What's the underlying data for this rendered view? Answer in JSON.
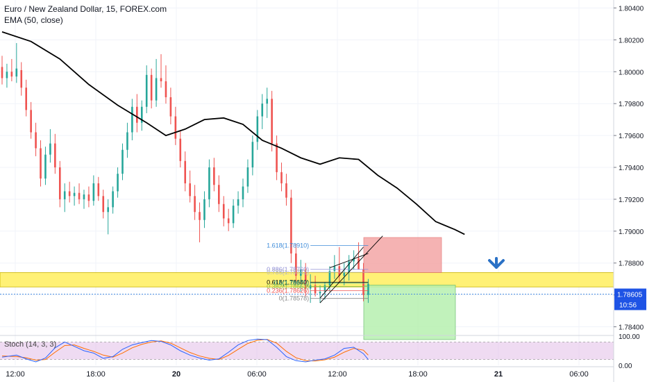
{
  "header": {
    "title": "Euro / New Zealand Dollar, 15, FOREX.com",
    "indicator": "EMA (50, close)"
  },
  "stoch_label": "Stoch (14, 3, 3)",
  "colors": {
    "up": "#26a69a",
    "down": "#ef5350",
    "ema": "#000000",
    "highlight_band": "#fff176",
    "stop_zone": "#f4a6a6",
    "target_zone": "#b7f0b0",
    "arrow": "#2a71c6",
    "current_price_line": "#4a90e2",
    "stoch_bg": "#e1bee7",
    "stoch_k": "#2962ff",
    "stoch_d": "#ff6d00"
  },
  "price_badge": {
    "price": "1.78605",
    "countdown": "10:56",
    "color": "#1e53e5"
  },
  "stoch_ticks": [
    "100.00",
    "0.00"
  ],
  "chart_data": {
    "type": "candlestick",
    "title": "Euro / New Zealand Dollar, 15, FOREX.com",
    "y_axis_ticks": [
      "1.80400",
      "1.80200",
      "1.80000",
      "1.79800",
      "1.79600",
      "1.79400",
      "1.79200",
      "1.79000",
      "1.78800",
      "1.78600",
      "1.78400"
    ],
    "ylim": [
      1.7835,
      1.8045
    ],
    "x_axis_ticks": [
      "12:00",
      "18:00",
      "20",
      "06:00",
      "12:00",
      "18:00",
      "21",
      "06:00"
    ],
    "current_price": 1.78605,
    "highlight_zone": [
      1.7865,
      1.7874
    ],
    "ema": [
      [
        0,
        1.8025
      ],
      [
        12,
        1.8019
      ],
      [
        24,
        1.8008
      ],
      [
        36,
        1.7992
      ],
      [
        48,
        1.7979
      ],
      [
        60,
        1.7968
      ],
      [
        68,
        1.796
      ],
      [
        76,
        1.7964
      ],
      [
        84,
        1.797
      ],
      [
        92,
        1.7971
      ],
      [
        100,
        1.7967
      ],
      [
        108,
        1.7957
      ],
      [
        116,
        1.7952
      ],
      [
        124,
        1.7946
      ],
      [
        132,
        1.7942
      ],
      [
        140,
        1.7946
      ],
      [
        148,
        1.7945
      ],
      [
        156,
        1.7935
      ],
      [
        164,
        1.7927
      ],
      [
        172,
        1.7917
      ],
      [
        180,
        1.7906
      ],
      [
        188,
        1.7901
      ],
      [
        192,
        1.7898
      ]
    ],
    "candles": [
      [
        0,
        1.8003,
        1.801,
        1.7992,
        1.7996
      ],
      [
        2,
        1.7996,
        1.8005,
        1.799,
        1.8
      ],
      [
        4,
        1.8,
        1.8008,
        1.7994,
        1.7997
      ],
      [
        6,
        1.7997,
        1.8018,
        1.7993,
        1.8002
      ],
      [
        8,
        1.8001,
        1.8006,
        1.7985,
        1.799
      ],
      [
        10,
        1.799,
        1.7995,
        1.7972,
        1.7976
      ],
      [
        12,
        1.7976,
        1.7981,
        1.7958,
        1.7962
      ],
      [
        14,
        1.7962,
        1.7968,
        1.7947,
        1.7952
      ],
      [
        16,
        1.7952,
        1.7957,
        1.7928,
        1.7933
      ],
      [
        18,
        1.7933,
        1.7953,
        1.7929,
        1.7948
      ],
      [
        20,
        1.7948,
        1.7964,
        1.7943,
        1.7955
      ],
      [
        22,
        1.7955,
        1.7961,
        1.7936,
        1.794
      ],
      [
        24,
        1.794,
        1.7944,
        1.7915,
        1.792
      ],
      [
        26,
        1.792,
        1.793,
        1.7912,
        1.7925
      ],
      [
        28,
        1.7925,
        1.7931,
        1.7918,
        1.7922
      ],
      [
        30,
        1.7922,
        1.7928,
        1.7916,
        1.7924
      ],
      [
        32,
        1.7924,
        1.793,
        1.7917,
        1.792
      ],
      [
        34,
        1.792,
        1.7926,
        1.7914,
        1.7923
      ],
      [
        36,
        1.7923,
        1.7928,
        1.7915,
        1.7919
      ],
      [
        38,
        1.7919,
        1.7935,
        1.7916,
        1.793
      ],
      [
        40,
        1.793,
        1.7934,
        1.7919,
        1.7922
      ],
      [
        42,
        1.7922,
        1.7926,
        1.7908,
        1.7912
      ],
      [
        44,
        1.7912,
        1.792,
        1.7898,
        1.7915
      ],
      [
        46,
        1.7915,
        1.7928,
        1.7911,
        1.7925
      ],
      [
        48,
        1.7925,
        1.794,
        1.7921,
        1.7936
      ],
      [
        50,
        1.7936,
        1.7955,
        1.7932,
        1.7951
      ],
      [
        52,
        1.7951,
        1.7968,
        1.7946,
        1.7962
      ],
      [
        54,
        1.7962,
        1.7983,
        1.7957,
        1.7978
      ],
      [
        56,
        1.7978,
        1.7986,
        1.7962,
        1.7968
      ],
      [
        58,
        1.7968,
        1.7982,
        1.7963,
        1.7978
      ],
      [
        60,
        1.7978,
        1.8004,
        1.7974,
        1.7998
      ],
      [
        62,
        1.7998,
        1.8002,
        1.7977,
        1.7982
      ],
      [
        64,
        1.7982,
        1.8008,
        1.7978,
        1.7996
      ],
      [
        66,
        1.7996,
        1.8011,
        1.799,
        1.7994
      ],
      [
        68,
        1.7994,
        1.8004,
        1.798,
        1.7984
      ],
      [
        70,
        1.7984,
        1.799,
        1.7967,
        1.7972
      ],
      [
        72,
        1.7972,
        1.7978,
        1.7954,
        1.7958
      ],
      [
        74,
        1.7958,
        1.7963,
        1.794,
        1.7944
      ],
      [
        76,
        1.7944,
        1.795,
        1.7925,
        1.793
      ],
      [
        78,
        1.793,
        1.7938,
        1.7918,
        1.7922
      ],
      [
        80,
        1.7922,
        1.7929,
        1.7907,
        1.7912
      ],
      [
        82,
        1.7912,
        1.7918,
        1.7893,
        1.7907
      ],
      [
        84,
        1.7907,
        1.7925,
        1.7902,
        1.792
      ],
      [
        86,
        1.792,
        1.7945,
        1.7915,
        1.794
      ],
      [
        88,
        1.794,
        1.7946,
        1.7925,
        1.7929
      ],
      [
        90,
        1.7929,
        1.7935,
        1.7912,
        1.7917
      ],
      [
        92,
        1.7917,
        1.7922,
        1.7903,
        1.7908
      ],
      [
        94,
        1.7908,
        1.7914,
        1.79,
        1.7905
      ],
      [
        96,
        1.7905,
        1.792,
        1.7902,
        1.7916
      ],
      [
        98,
        1.7916,
        1.7925,
        1.7911,
        1.792
      ],
      [
        100,
        1.792,
        1.7933,
        1.7915,
        1.7928
      ],
      [
        102,
        1.7928,
        1.7945,
        1.7924,
        1.794
      ],
      [
        104,
        1.794,
        1.796,
        1.7935,
        1.7956
      ],
      [
        106,
        1.7956,
        1.7976,
        1.7951,
        1.7972
      ],
      [
        108,
        1.7972,
        1.7986,
        1.7964,
        1.798
      ],
      [
        110,
        1.798,
        1.799,
        1.7971,
        1.7983
      ],
      [
        112,
        1.7983,
        1.7988,
        1.795,
        1.7955
      ],
      [
        114,
        1.7955,
        1.796,
        1.7932,
        1.7937
      ],
      [
        116,
        1.7937,
        1.7943,
        1.7925,
        1.793
      ],
      [
        118,
        1.793,
        1.7936,
        1.7916,
        1.7921
      ],
      [
        120,
        1.7921,
        1.7926,
        1.788,
        1.7886
      ],
      [
        122,
        1.7886,
        1.7892,
        1.7866,
        1.7872
      ],
      [
        124,
        1.7872,
        1.7882,
        1.7862,
        1.7876
      ],
      [
        126,
        1.7876,
        1.788,
        1.7859,
        1.7864
      ],
      [
        128,
        1.7864,
        1.7873,
        1.7855,
        1.7866
      ],
      [
        130,
        1.7866,
        1.7872,
        1.7859,
        1.7861
      ],
      [
        132,
        1.7861,
        1.7866,
        1.7855,
        1.7862
      ],
      [
        134,
        1.7862,
        1.7868,
        1.7857,
        1.7866
      ],
      [
        136,
        1.7866,
        1.7878,
        1.7862,
        1.7875
      ],
      [
        138,
        1.7875,
        1.7885,
        1.787,
        1.7878
      ],
      [
        140,
        1.7878,
        1.789,
        1.7868,
        1.7872
      ],
      [
        142,
        1.7872,
        1.788,
        1.7866,
        1.7874
      ],
      [
        144,
        1.7874,
        1.7885,
        1.7869,
        1.7881
      ],
      [
        146,
        1.7881,
        1.7888,
        1.7876,
        1.7883
      ],
      [
        148,
        1.7883,
        1.7893,
        1.7878,
        1.7876
      ],
      [
        150,
        1.7876,
        1.788,
        1.7856,
        1.786
      ],
      [
        152,
        1.786,
        1.787,
        1.7855,
        1.7867
      ]
    ],
    "fib_levels": [
      {
        "label": "1.618(1.78910)",
        "price": 1.7891,
        "color": "#3d8bd9"
      },
      {
        "label": "0.886(1.78760)",
        "price": 1.7876,
        "color": "#8e8ed6"
      },
      {
        "label": "0.786(1.78742)",
        "price": 1.78742,
        "color": "#bbbbbb"
      },
      {
        "label": "0.618(1.78680)",
        "price": 1.7868,
        "color": "#000000"
      },
      {
        "label": "0.5(1.78675)",
        "price": 1.78675,
        "color": "#26a69a"
      },
      {
        "label": "0.382(1.78653)",
        "price": 1.78653,
        "color": "#8bc34a"
      },
      {
        "label": "0.236(1.78626)",
        "price": 1.78626,
        "color": "#ef5350"
      },
      {
        "label": "0(1.78578)",
        "price": 1.78578,
        "color": "#888888"
      }
    ],
    "position": {
      "entry": 1.7874,
      "stop": 1.7896,
      "target": 1.7832
    },
    "stochastic": {
      "k": [
        [
          0,
          28
        ],
        [
          6,
          35
        ],
        [
          10,
          22
        ],
        [
          14,
          12
        ],
        [
          18,
          25
        ],
        [
          22,
          60
        ],
        [
          26,
          80
        ],
        [
          30,
          65
        ],
        [
          34,
          50
        ],
        [
          38,
          42
        ],
        [
          42,
          24
        ],
        [
          46,
          30
        ],
        [
          50,
          55
        ],
        [
          54,
          70
        ],
        [
          58,
          78
        ],
        [
          62,
          85
        ],
        [
          66,
          82
        ],
        [
          70,
          70
        ],
        [
          74,
          50
        ],
        [
          78,
          35
        ],
        [
          82,
          25
        ],
        [
          86,
          18
        ],
        [
          90,
          22
        ],
        [
          94,
          45
        ],
        [
          98,
          70
        ],
        [
          102,
          85
        ],
        [
          106,
          90
        ],
        [
          110,
          88
        ],
        [
          114,
          62
        ],
        [
          118,
          30
        ],
        [
          122,
          16
        ],
        [
          126,
          12
        ],
        [
          130,
          18
        ],
        [
          134,
          22
        ],
        [
          138,
          35
        ],
        [
          142,
          58
        ],
        [
          146,
          62
        ],
        [
          150,
          40
        ],
        [
          152,
          20
        ]
      ],
      "d": [
        [
          0,
          32
        ],
        [
          6,
          30
        ],
        [
          10,
          26
        ],
        [
          14,
          18
        ],
        [
          18,
          20
        ],
        [
          22,
          45
        ],
        [
          26,
          68
        ],
        [
          30,
          70
        ],
        [
          34,
          58
        ],
        [
          38,
          48
        ],
        [
          42,
          35
        ],
        [
          46,
          28
        ],
        [
          50,
          42
        ],
        [
          54,
          60
        ],
        [
          58,
          72
        ],
        [
          62,
          80
        ],
        [
          66,
          84
        ],
        [
          70,
          76
        ],
        [
          74,
          60
        ],
        [
          78,
          44
        ],
        [
          82,
          32
        ],
        [
          86,
          24
        ],
        [
          90,
          20
        ],
        [
          94,
          34
        ],
        [
          98,
          55
        ],
        [
          102,
          75
        ],
        [
          106,
          86
        ],
        [
          110,
          89
        ],
        [
          114,
          76
        ],
        [
          118,
          48
        ],
        [
          122,
          26
        ],
        [
          126,
          16
        ],
        [
          130,
          15
        ],
        [
          134,
          19
        ],
        [
          138,
          28
        ],
        [
          142,
          45
        ],
        [
          146,
          58
        ],
        [
          150,
          52
        ],
        [
          152,
          35
        ]
      ]
    },
    "grid": true
  }
}
